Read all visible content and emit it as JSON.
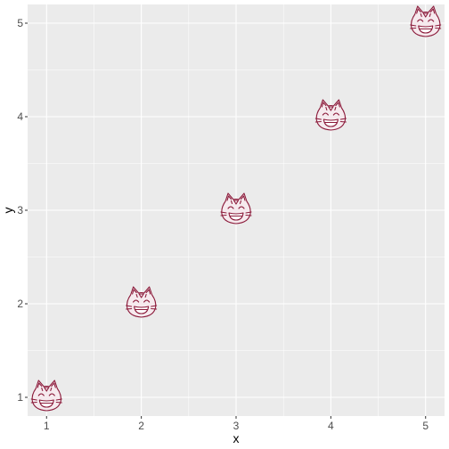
{
  "chart_data": {
    "type": "scatter",
    "title": "",
    "xlabel": "x",
    "ylabel": "y",
    "xlim": [
      0.8,
      5.2
    ],
    "ylim": [
      0.8,
      5.2
    ],
    "x_ticks": [
      1,
      2,
      3,
      4,
      5
    ],
    "y_ticks": [
      1,
      2,
      3,
      4,
      5
    ],
    "grid": true,
    "marker": "grinning-cat-face-with-smiling-eyes",
    "marker_color": "#8b1a3a",
    "panel_background": "#ebebeb",
    "grid_color": "#ffffff",
    "series": [
      {
        "x": [
          1,
          2,
          3,
          4,
          5
        ],
        "y": [
          1,
          2,
          3,
          4,
          5
        ]
      }
    ]
  }
}
